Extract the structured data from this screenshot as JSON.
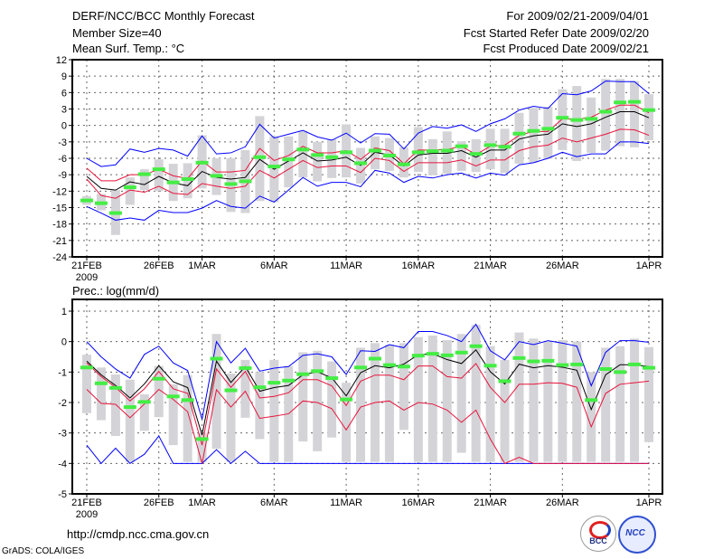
{
  "header": {
    "title": "DERF/NCC/BCC Monthly Forecast",
    "member_size": "Member Size=40",
    "variable": "Mean Surf. Temp.: °C",
    "period": "For 2009/02/21-2009/04/01",
    "started": "Fcst Started Refer Date 2009/02/20",
    "produced": "Fcst Produced Date 2009/02/21"
  },
  "footer": {
    "url": "http://cmdp.ncc.cma.gov.cn",
    "credit": "GrADS: COLA/IGES",
    "logo_bcc": "BCC",
    "logo_ncc": "NCC"
  },
  "colors": {
    "mean": "#000000",
    "spread": "#e8143c",
    "extreme": "#0000ff",
    "obs": "#44ee44",
    "box": "#d4d4d8"
  },
  "chart_data": [
    {
      "type": "line",
      "title": "Mean Surf. Temp.: °C",
      "x_tick_labels": [
        {
          "day": 0,
          "label": "21FEB"
        },
        {
          "day": 5,
          "label": "26FEB"
        },
        {
          "day": 8,
          "label": "1MAR"
        },
        {
          "day": 13,
          "label": "6MAR"
        },
        {
          "day": 18,
          "label": "11MAR"
        },
        {
          "day": 23,
          "label": "16MAR"
        },
        {
          "day": 28,
          "label": "21MAR"
        },
        {
          "day": 33,
          "label": "26MAR"
        },
        {
          "day": 39,
          "label": "1APR"
        }
      ],
      "year_label": "2009",
      "ylim": [
        -24,
        12
      ],
      "y_ticks": [
        12,
        9,
        6,
        3,
        0,
        -3,
        -6,
        -9,
        -12,
        -15,
        -18,
        -21,
        -24
      ],
      "grid": true,
      "series": {
        "mean": [
          -9.3,
          -11.5,
          -11.8,
          -10.3,
          -10.8,
          -9.3,
          -10.5,
          -11,
          -8.4,
          -9.5,
          -9.8,
          -9.5,
          -6.2,
          -8,
          -6.5,
          -5,
          -6.5,
          -6.3,
          -5.8,
          -7.3,
          -4.9,
          -5.4,
          -7.4,
          -5.4,
          -5.1,
          -5.1,
          -4.6,
          -5.8,
          -4.5,
          -4.5,
          -2.5,
          -1.9,
          -1.6,
          0.3,
          -0.2,
          0.3,
          1.5,
          2.5,
          2.5,
          1.4
        ],
        "upper": [
          -7.8,
          -10.1,
          -10.1,
          -9,
          -9,
          -8,
          -9.2,
          -9.7,
          -6.5,
          -8.5,
          -8.5,
          -8.2,
          -4.2,
          -6.4,
          -5.5,
          -3.8,
          -5,
          -5,
          -4.6,
          -6.2,
          -4.1,
          -4.6,
          -7.0,
          -4.5,
          -4.5,
          -4.4,
          -3.8,
          -5.3,
          -3.8,
          -3.6,
          -1.8,
          -1.1,
          -1.1,
          1.2,
          1.1,
          1.5,
          2.8,
          3.7,
          3.7,
          2.3
        ],
        "lower": [
          -9.8,
          -12.8,
          -13.3,
          -11.8,
          -12.2,
          -11.1,
          -12.4,
          -12.6,
          -10.6,
          -11.1,
          -11.5,
          -11.1,
          -8.2,
          -9.6,
          -8,
          -6.4,
          -7.7,
          -7.4,
          -7.4,
          -8.6,
          -6,
          -6.4,
          -8.4,
          -6.8,
          -6.8,
          -6.8,
          -6.3,
          -7.4,
          -6.3,
          -6.3,
          -4.6,
          -3.9,
          -3.6,
          -2.3,
          -3,
          -2.3,
          -1.6,
          -0.7,
          -0.8,
          -1.8
        ],
        "max": [
          -6,
          -7.5,
          -7.2,
          -4.3,
          -4.9,
          -4.2,
          -4.5,
          -5.6,
          -1.9,
          -5.2,
          -5,
          -3.9,
          0.2,
          -2.3,
          -1.6,
          -0.9,
          -2.1,
          -2.7,
          -1.4,
          -3.2,
          -1.5,
          -1.6,
          -4.3,
          -1.4,
          -0.2,
          -0.5,
          0.1,
          -1.1,
          0.3,
          1.2,
          2.8,
          3.5,
          3.1,
          5.8,
          5.6,
          6.3,
          8.1,
          8.0,
          8.0,
          5.8
        ],
        "min": [
          -14.8,
          -16,
          -17.3,
          -16.9,
          -17.3,
          -15.5,
          -15.9,
          -15.9,
          -15.1,
          -13.7,
          -14.8,
          -15.1,
          -12.9,
          -14,
          -11.8,
          -9.5,
          -11.1,
          -10.4,
          -10.4,
          -11.2,
          -8.2,
          -8.7,
          -10.4,
          -9.3,
          -9.6,
          -9,
          -8.7,
          -9.6,
          -8.7,
          -9.1,
          -7.2,
          -6.8,
          -6,
          -4.9,
          -5.7,
          -5.2,
          -5.2,
          -3,
          -3,
          -3.3
        ],
        "observed": [
          -13.7,
          -14.2,
          -16,
          -11.3,
          -8.9,
          -8,
          -10.4,
          -9.8,
          -6.8,
          -9.2,
          -10.7,
          -10.2,
          -5.8,
          -7.5,
          -6.2,
          -4.4,
          -5.4,
          -5.8,
          -4.9,
          -6.9,
          -4.6,
          -5.5,
          -7.1,
          -4.9,
          -4.7,
          -4.6,
          -3.8,
          -5.2,
          -3.6,
          -3.9,
          -1.5,
          -1,
          -0.6,
          1.4,
          1,
          1.2,
          2.5,
          4.2,
          4.3,
          2.8
        ],
        "box_low": [
          -14.5,
          -15.5,
          -20,
          -14.5,
          -11.8,
          -12,
          -13.8,
          -13.3,
          -11.5,
          -12.7,
          -15.8,
          -16,
          -13.8,
          -14,
          -11.3,
          -9.5,
          -10.2,
          -9.6,
          -9.5,
          -10.6,
          -8,
          -8.3,
          -9.5,
          -8.5,
          -9.1,
          -8.8,
          -8.3,
          -8.5,
          -8,
          -8.7,
          -7,
          -6.8,
          -6.1,
          -4.5,
          -6.5,
          -5,
          -4.6,
          -3.8,
          -4,
          -2.7
        ],
        "box_high": [
          -12.9,
          -12.5,
          -11.8,
          -9.5,
          -8,
          -6.2,
          -7,
          -6.9,
          -1.8,
          -6,
          -6,
          -4.5,
          1.7,
          -2,
          -2,
          -1,
          -3,
          -2.5,
          0.2,
          -4.1,
          -2,
          -2.3,
          -4,
          -0.3,
          -2.5,
          -1.1,
          -2.9,
          -2.5,
          -0.6,
          -0.6,
          2.3,
          3.2,
          3.4,
          6.6,
          7.2,
          5.1,
          8.5,
          8.5,
          8.1,
          5.7
        ]
      }
    },
    {
      "type": "line",
      "title": "Prec.: log(mm/d)",
      "x_tick_labels": [
        {
          "day": 0,
          "label": "21FEB"
        },
        {
          "day": 5,
          "label": "26FEB"
        },
        {
          "day": 8,
          "label": "1MAR"
        },
        {
          "day": 13,
          "label": "6MAR"
        },
        {
          "day": 18,
          "label": "11MAR"
        },
        {
          "day": 23,
          "label": "16MAR"
        },
        {
          "day": 28,
          "label": "21MAR"
        },
        {
          "day": 33,
          "label": "26MAR"
        },
        {
          "day": 39,
          "label": "1APR"
        }
      ],
      "year_label": "2009",
      "ylim": [
        -5,
        1.4
      ],
      "y_ticks": [
        1,
        0,
        -1,
        -2,
        -3,
        -4,
        -5
      ],
      "grid": true,
      "series": {
        "mean": [
          -0.64,
          -1.09,
          -1.44,
          -1.85,
          -1.39,
          -0.79,
          -1.32,
          -1.51,
          -3.07,
          -0.64,
          -1.34,
          -0.82,
          -1.63,
          -1.51,
          -1.44,
          -1.09,
          -0.99,
          -1.19,
          -1.78,
          -1.02,
          -0.79,
          -0.86,
          -0.74,
          -0.43,
          -0.4,
          -0.59,
          -0.72,
          -0.27,
          -0.99,
          -1.39,
          -0.74,
          -0.86,
          -0.79,
          -0.84,
          -0.94,
          -2.23,
          -1.09,
          -0.76,
          -0.76,
          -0.82
        ],
        "upper": [
          -0.7,
          -1.15,
          -1.5,
          -1.95,
          -1.55,
          -0.98,
          -1.55,
          -1.7,
          -3.4,
          -0.9,
          -1.5,
          -0.98,
          -1.85,
          -1.8,
          -1.68,
          -1.25,
          -1.25,
          -1.45,
          -2.1,
          -1.3,
          -1.1,
          -1.1,
          -1.25,
          -0.8,
          -0.8,
          -1.15,
          -1.2,
          -0.72,
          -1.5,
          -2.0,
          -1.4,
          -1.4,
          -1.35,
          -1.37,
          -1.5,
          -2.8,
          -1.7,
          -1.4,
          -1.35,
          -1.3
        ],
        "lower": [
          -1.57,
          -2.03,
          -2.06,
          -2.5,
          -2.05,
          -1.57,
          -1.9,
          -2.3,
          -4.0,
          -1.58,
          -2.15,
          -1.63,
          -2.52,
          -2.45,
          -2.37,
          -1.95,
          -2.0,
          -2.2,
          -2.9,
          -2.15,
          -2.0,
          -1.95,
          -2.25,
          -2.0,
          -2.05,
          -2.25,
          -2.65,
          -2.25,
          -3.2,
          -4.0,
          -3.8,
          -4.0,
          -4.0,
          -4.0,
          -4.0,
          -4.0,
          -4.0,
          -4.0,
          -4.0,
          -4.0
        ],
        "max": [
          0.0,
          -0.5,
          -0.9,
          -1.2,
          -0.42,
          -0.15,
          -0.7,
          -0.95,
          -2.55,
          0.0,
          -0.7,
          -0.22,
          -0.97,
          -0.87,
          -0.82,
          -0.45,
          -0.4,
          -0.5,
          -1.08,
          -0.3,
          -0.32,
          -0.1,
          -0.2,
          0.33,
          0.33,
          0.2,
          0.0,
          0.57,
          -0.3,
          -0.6,
          0.0,
          -0.1,
          0.03,
          -0.05,
          -0.15,
          -1.45,
          -0.35,
          0.03,
          0.03,
          -0.02
        ],
        "min": [
          -3.4,
          -4,
          -3.5,
          -4,
          -3.7,
          -3.1,
          -4,
          -4,
          -4,
          -3.55,
          -4,
          -3.6,
          -4,
          -4,
          -4,
          -4,
          -4,
          -4,
          -4,
          -4,
          -4,
          -4,
          -4,
          -4,
          -4,
          -4,
          -4,
          -4,
          -4,
          -4,
          -4,
          -4,
          -4,
          -4,
          -4,
          -4,
          -4,
          -4,
          -4,
          -4
        ],
        "observed": [
          -0.85,
          -1.37,
          -1.52,
          -2.15,
          -1.98,
          -1.22,
          -1.8,
          -1.92,
          -3.2,
          -0.56,
          -1.6,
          -0.87,
          -1.5,
          -1.35,
          -1.28,
          -1.07,
          -0.97,
          -1.2,
          -1.9,
          -0.85,
          -0.56,
          -0.77,
          -0.82,
          -0.46,
          -0.4,
          -0.45,
          -0.36,
          -0.15,
          -0.79,
          -1.3,
          -0.54,
          -0.65,
          -0.63,
          -0.77,
          -0.75,
          -1.92,
          -0.9,
          -1.0,
          -0.75,
          -0.86
        ],
        "box_low": [
          -2.35,
          -2.58,
          -3.1,
          -3.95,
          -2.93,
          -2.48,
          -3.4,
          -3.95,
          -3.95,
          -3.52,
          -3.95,
          -2.5,
          -3.2,
          -3.95,
          -3.95,
          -3.28,
          -3.6,
          -3.15,
          -3.95,
          -3.95,
          -3.95,
          -3.95,
          -2.9,
          -3.95,
          -3.95,
          -3.95,
          -3.65,
          -3.95,
          -3.95,
          -3.95,
          -3.95,
          -3.95,
          -3.95,
          -3.95,
          -3.95,
          -3.95,
          -3.95,
          -3.95,
          -3.95,
          -3.3
        ],
        "box_high": [
          -0.43,
          -0.85,
          -1.08,
          -1.25,
          -1.73,
          -0.8,
          -1.4,
          -1.1,
          -3.0,
          0.25,
          -1.05,
          -0.6,
          -1.0,
          -0.6,
          -0.8,
          -0.35,
          -0.3,
          -0.65,
          -1.35,
          -0.2,
          -0.05,
          -0.1,
          -0.05,
          0.15,
          0.2,
          0.05,
          0.25,
          0.55,
          -0.15,
          -0.6,
          0.3,
          0.1,
          0.0,
          0.05,
          0.0,
          -1.0,
          -0.2,
          -0.15,
          0.1,
          -0.18
        ]
      }
    }
  ]
}
